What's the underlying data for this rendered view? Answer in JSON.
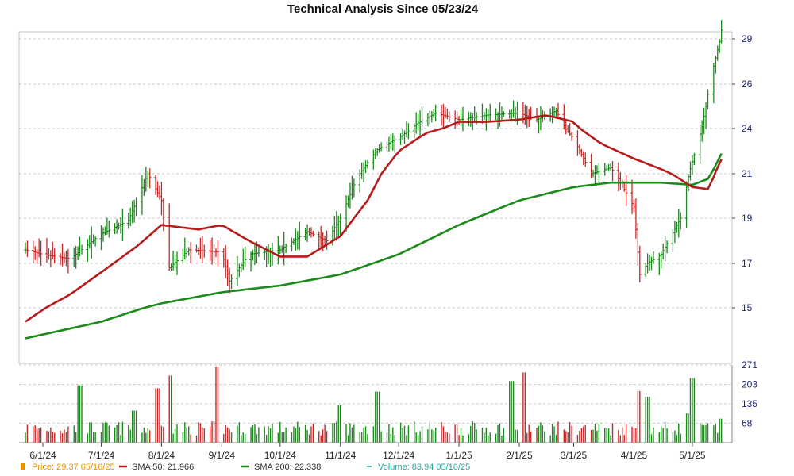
{
  "chart_data": {
    "type": "line",
    "title": "Technical Analysis Since 05/23/24",
    "x_tick_labels": [
      "6/1/24",
      "7/1/24",
      "8/1/24",
      "9/1/24",
      "10/1/24",
      "11/1/24",
      "12/1/24",
      "1/1/25",
      "2/1/25",
      "3/1/25",
      "4/1/25",
      "5/1/25"
    ],
    "y_tick_labels": [
      "15",
      "17",
      "19",
      "21",
      "24",
      "26",
      "29"
    ],
    "y_ticks": [
      15,
      17,
      19,
      21,
      24,
      26,
      29
    ],
    "ylim": [
      13.0,
      29.3
    ],
    "volume_tick_labels": [
      "271",
      "203",
      "135",
      "68"
    ],
    "volume_ticks": [
      271,
      203,
      135,
      68
    ],
    "volume_lim": [
      0,
      271
    ],
    "grid": true,
    "legend_position": "bottom",
    "series": [
      {
        "name": "Price: 29.37  05/16/25",
        "color": "#e69500",
        "kind": "ohlc",
        "x": [
          "2024-05-23",
          "2024-06-01",
          "2024-06-15",
          "2024-07-01",
          "2024-07-15",
          "2024-07-25",
          "2024-08-01",
          "2024-08-05",
          "2024-08-15",
          "2024-09-01",
          "2024-09-05",
          "2024-09-15",
          "2024-10-01",
          "2024-10-15",
          "2024-10-25",
          "2024-11-01",
          "2024-11-08",
          "2024-11-20",
          "2024-12-01",
          "2024-12-10",
          "2024-12-20",
          "2025-01-01",
          "2025-01-15",
          "2025-02-01",
          "2025-02-10",
          "2025-02-20",
          "2025-03-01",
          "2025-03-10",
          "2025-03-20",
          "2025-04-01",
          "2025-04-04",
          "2025-04-08",
          "2025-04-15",
          "2025-04-25",
          "2025-05-01",
          "2025-05-08",
          "2025-05-16"
        ],
        "close": [
          17.6,
          17.4,
          17.2,
          18.3,
          18.9,
          21.0,
          19.8,
          16.8,
          17.6,
          17.5,
          16.2,
          17.4,
          17.6,
          18.4,
          18.0,
          19.0,
          20.5,
          22.6,
          23.4,
          24.2,
          24.7,
          24.4,
          24.6,
          24.7,
          24.4,
          24.8,
          23.3,
          21.0,
          21.4,
          19.5,
          16.5,
          17.0,
          17.4,
          19.0,
          21.8,
          25.0,
          29.37
        ]
      },
      {
        "name": "SMA 50: 21.966",
        "color": "#b71c1c",
        "kind": "line",
        "x": [
          "2024-05-23",
          "2024-06-15",
          "2024-07-01",
          "2024-07-20",
          "2024-08-01",
          "2024-08-20",
          "2024-09-01",
          "2024-09-15",
          "2024-10-01",
          "2024-10-15",
          "2024-11-01",
          "2024-11-15",
          "2024-12-01",
          "2024-12-15",
          "2025-01-01",
          "2025-01-15",
          "2025-02-01",
          "2025-02-15",
          "2025-03-01",
          "2025-03-15",
          "2025-04-01",
          "2025-04-15",
          "2025-05-01",
          "2025-05-10",
          "2025-05-16"
        ],
        "values": [
          14.5,
          15.6,
          16.6,
          17.8,
          18.7,
          18.5,
          18.7,
          18.0,
          17.3,
          17.3,
          18.2,
          19.8,
          22.5,
          23.7,
          24.3,
          24.3,
          24.4,
          24.6,
          24.3,
          23.0,
          22.0,
          21.3,
          20.4,
          20.3,
          21.966
        ]
      },
      {
        "name": "SMA 200: 22.338",
        "color": "#1b8a1b",
        "kind": "line",
        "x": [
          "2024-05-23",
          "2024-07-01",
          "2024-08-01",
          "2024-09-01",
          "2024-10-01",
          "2024-11-01",
          "2024-12-01",
          "2025-01-01",
          "2025-02-01",
          "2025-03-01",
          "2025-03-20",
          "2025-04-15",
          "2025-05-01",
          "2025-05-10",
          "2025-05-16"
        ],
        "values": [
          13.9,
          14.5,
          15.2,
          15.7,
          16.0,
          16.5,
          17.4,
          18.7,
          19.8,
          20.4,
          20.6,
          20.6,
          20.5,
          20.8,
          22.338
        ]
      },
      {
        "name": "Volume: 83.94  05/16/25",
        "color": "#1b8a1b",
        "kind": "volume",
        "x": [
          "2024-06-20",
          "2024-07-18",
          "2024-07-30",
          "2024-08-05",
          "2024-08-30",
          "2024-11-01",
          "2024-11-20",
          "2025-01-28",
          "2025-02-03",
          "2025-04-04",
          "2025-04-08",
          "2025-04-28",
          "2025-05-01",
          "2025-05-16"
        ],
        "values": [
          200,
          112,
          190,
          234,
          265,
          130,
          178,
          215,
          245,
          180,
          160,
          102,
          225,
          83.94
        ]
      }
    ]
  }
}
